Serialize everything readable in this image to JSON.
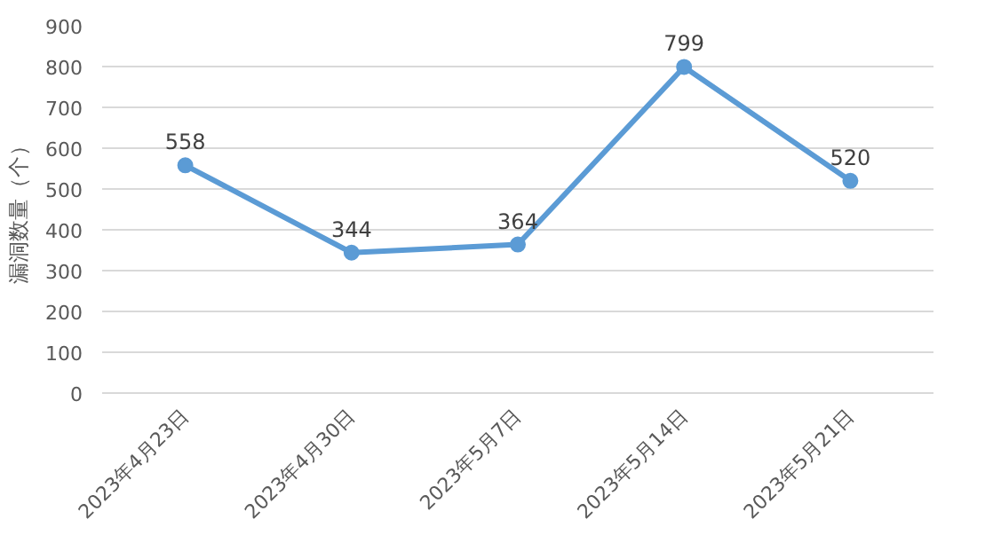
{
  "chart_data": {
    "type": "line",
    "ylabel": "漏洞数量（个）",
    "categories": [
      "2023年4月23日",
      "2023年4月30日",
      "2023年5月7日",
      "2023年5月14日",
      "2023年5月21日"
    ],
    "series": [
      {
        "color": "#5b9bd5",
        "values": [
          558,
          344,
          364,
          799,
          520
        ]
      }
    ],
    "ylim": [
      0,
      900
    ],
    "yticks": [
      0,
      100,
      200,
      300,
      400,
      500,
      600,
      700,
      800,
      900
    ],
    "grid": "y",
    "marker": "circle",
    "line_style": "solid",
    "data_labels": true
  }
}
